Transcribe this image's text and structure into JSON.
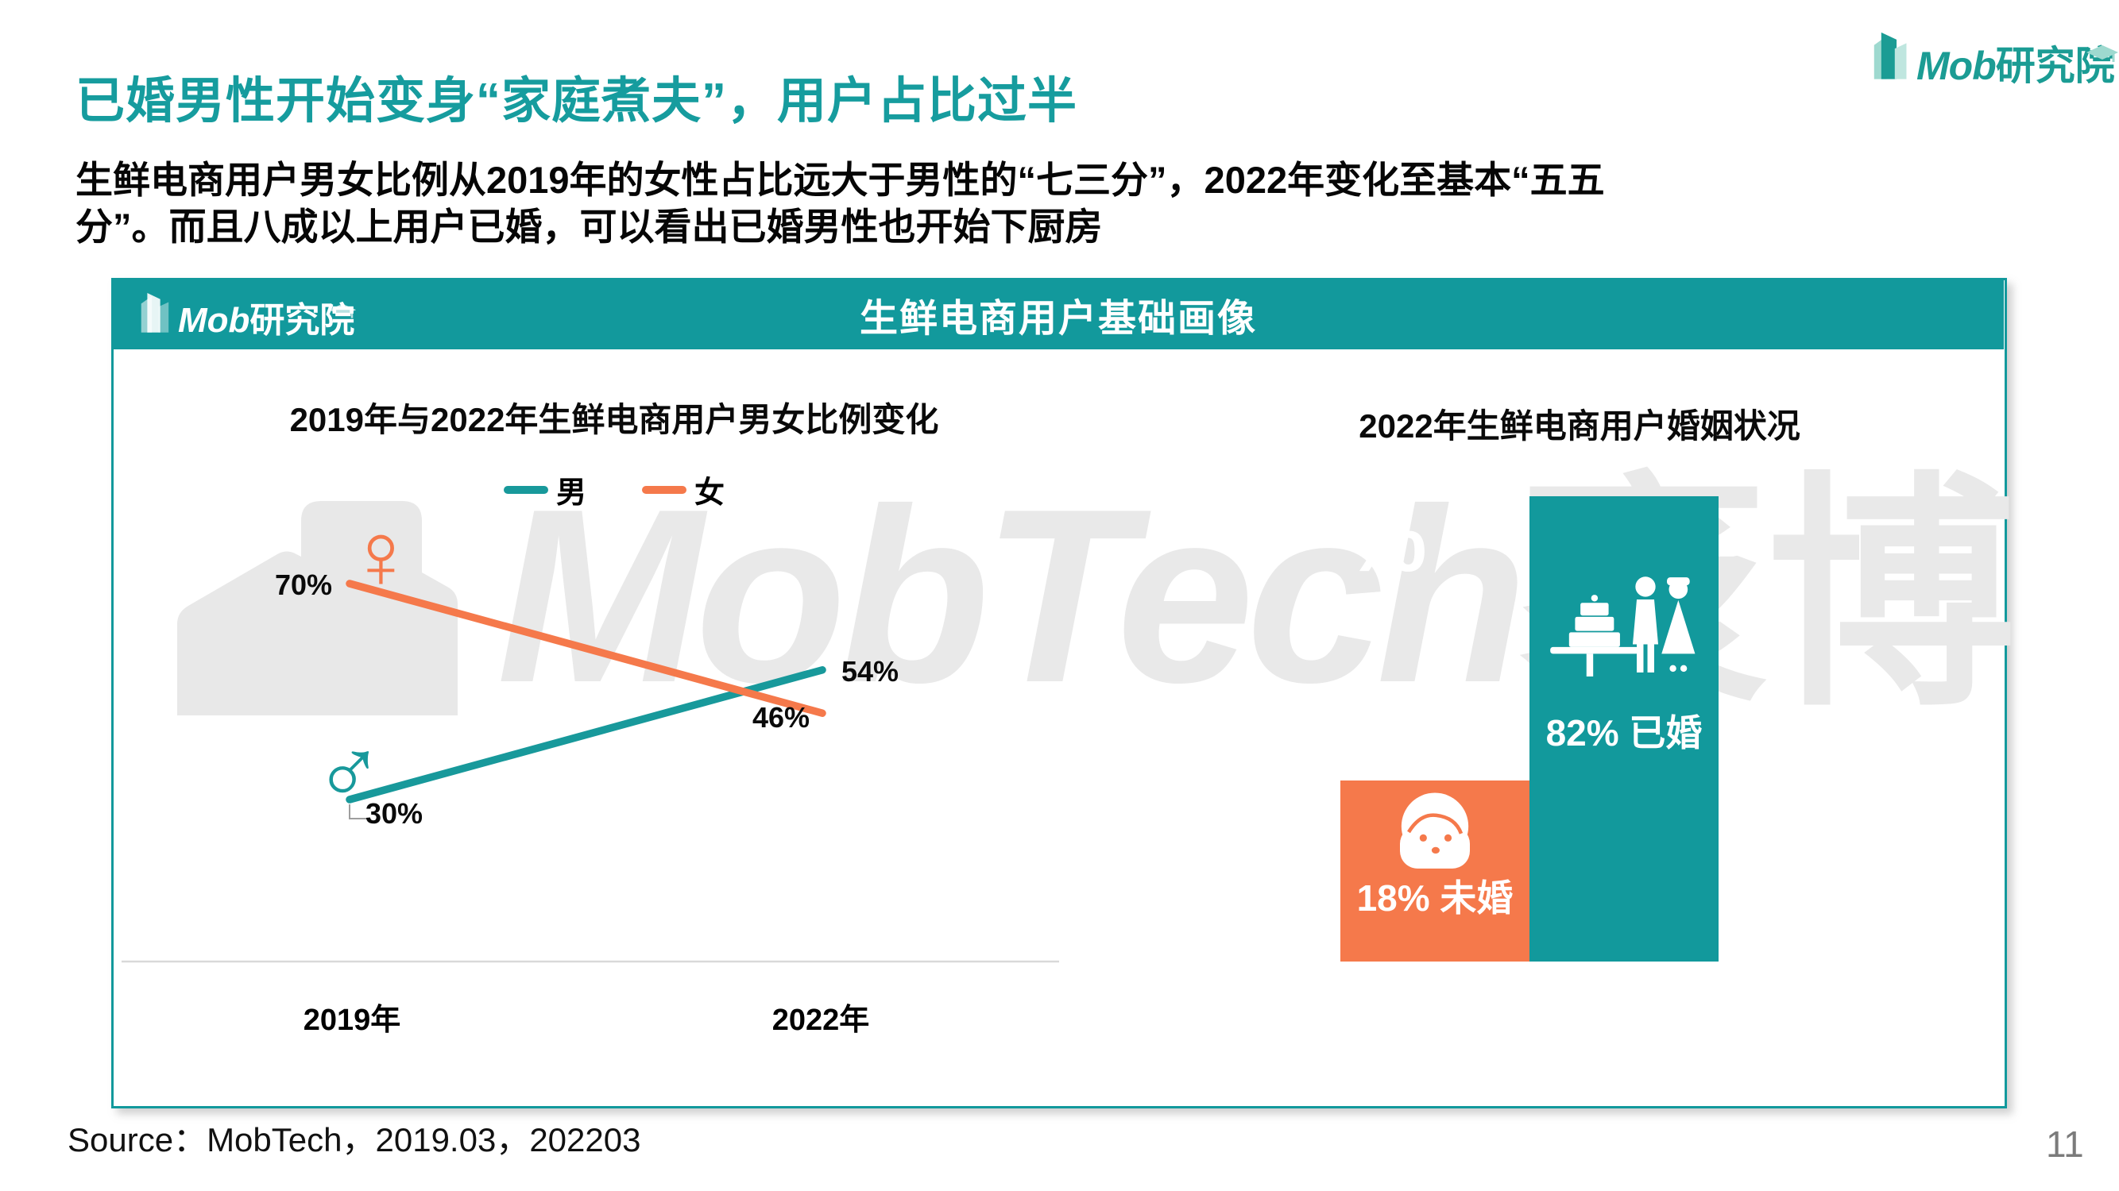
{
  "page": {
    "title": "已婚男性开始变身“家庭煮夫”，用户占比过半",
    "subtitle_line1": "生鲜电商用户男女比例从2019年的女性占比远大于男性的“七三分”，2022年变化至基本“五五",
    "subtitle_line2": "分”。而且八成以上用户已婚，可以看出已婚男性也开始下厨房",
    "source": "Source：MobTech，2019.03，202203",
    "page_number": "11"
  },
  "brand": {
    "logo_mob": "Mob",
    "logo_suffix": "研究院",
    "watermark_text": "MobTech",
    "watermark_cn": "袤博",
    "watermark_percent": "%"
  },
  "panel": {
    "header_title": "生鲜电商用户基础画像"
  },
  "colors": {
    "teal": "#12999c",
    "orange": "#f5794b",
    "title_teal": "#169c9e",
    "watermark_gray": "#e9e9e9",
    "axis_gray": "#d9d9d9"
  },
  "chart_data": [
    {
      "type": "line",
      "title": "2019年与2022年生鲜电商用户男女比例变化",
      "categories": [
        "2019年",
        "2022年"
      ],
      "series": [
        {
          "name": "男",
          "color": "#18999b",
          "values": [
            30,
            54
          ],
          "labels": [
            "30%",
            "54%"
          ]
        },
        {
          "name": "女",
          "color": "#f5794b",
          "values": [
            70,
            46
          ],
          "labels": [
            "70%",
            "46%"
          ]
        }
      ],
      "ylim": [
        0,
        100
      ],
      "grid": false,
      "legend_position": "top"
    },
    {
      "type": "bar",
      "title": "2022年生鲜电商用户婚姻状况",
      "categories": [
        "未婚",
        "已婚"
      ],
      "values": [
        18,
        82
      ],
      "labels": [
        "18% 未婚",
        "82% 已婚"
      ],
      "colors": [
        "#f5794b",
        "#12999c"
      ],
      "ylim": [
        0,
        100
      ],
      "grid": false
    }
  ]
}
